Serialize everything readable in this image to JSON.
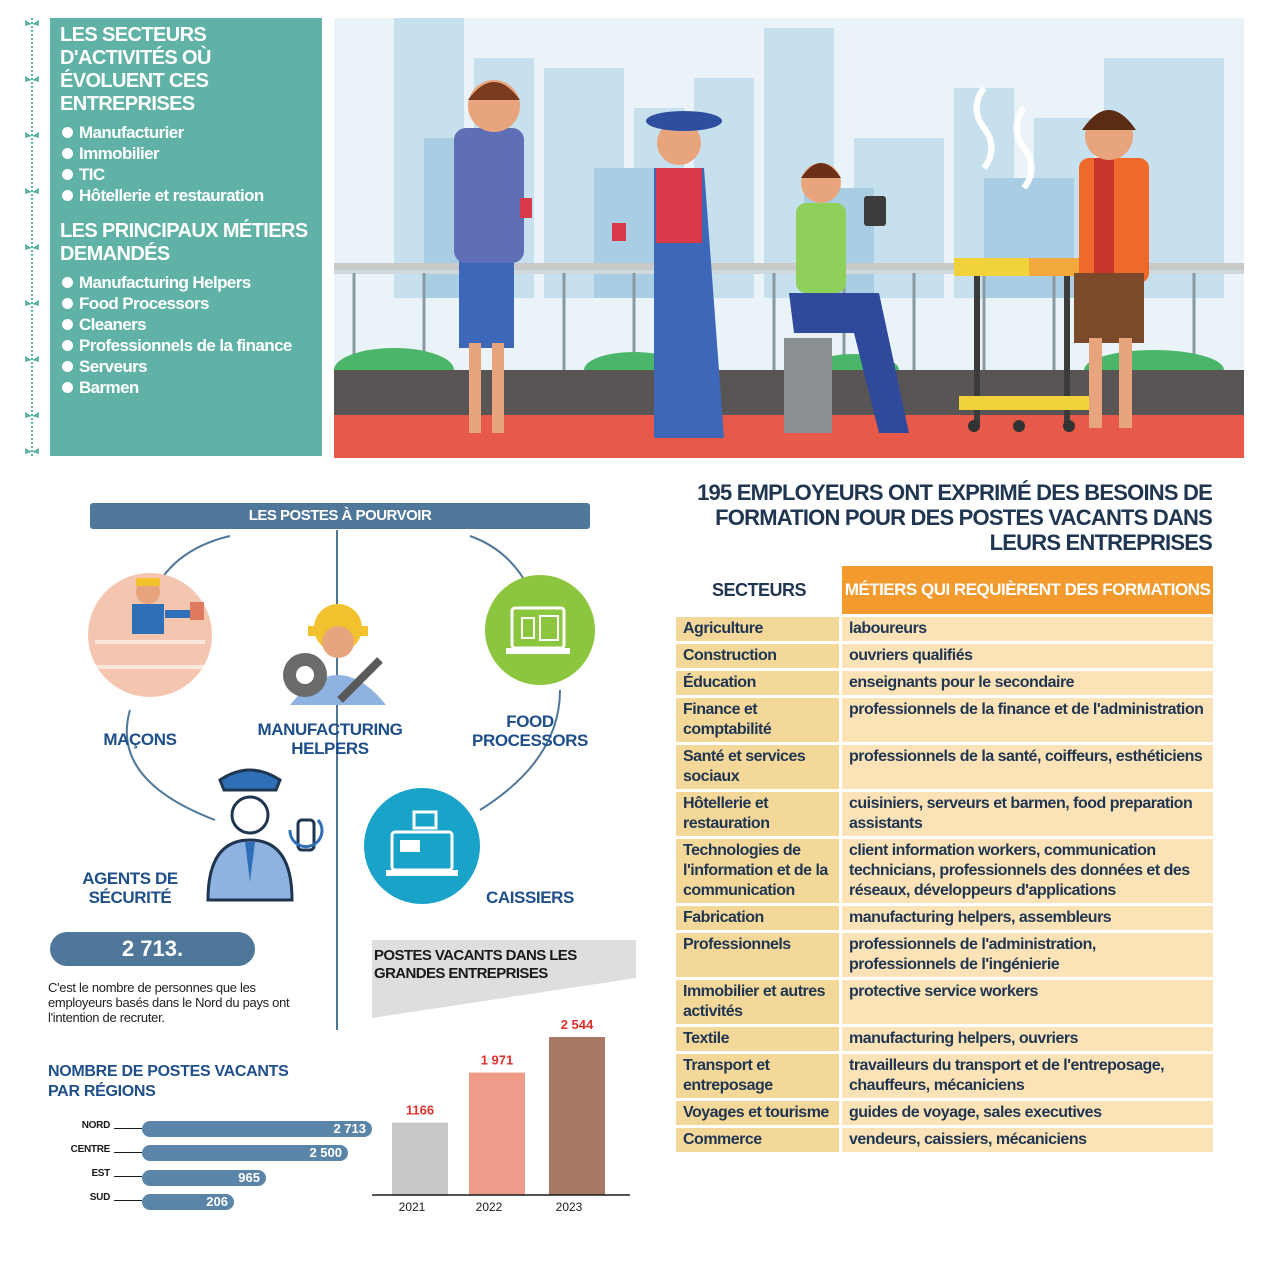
{
  "sectors_panel": {
    "title": "LES SECTEURS D'ACTIVITÉS OÙ ÉVOLUENT CES ENTREPRISES",
    "items": [
      "Manufacturier",
      "Immobilier",
      "TIC",
      "Hôtellerie et restauration"
    ]
  },
  "metiers_panel": {
    "title": "LES PRINCIPAUX MÉTIERS DEMANDÉS",
    "items": [
      "Manufacturing Helpers",
      "Food Processors",
      "Cleaners",
      "Professionnels de la finance",
      "Serveurs",
      "Barmen"
    ]
  },
  "postes": {
    "banner": "LES POSTES À POURVOIR",
    "jobs": {
      "macons": "MAÇONS",
      "manufacturing": "MANUFACTURING HELPERS",
      "food": "FOOD PROCESSORS",
      "agents": "AGENTS DE SÉCURITÉ",
      "caissiers": "CAISSIERS"
    }
  },
  "recruit": {
    "count": "2 713.",
    "text": "C'est le nombre de personnes que les employeurs basés dans le Nord du pays ont l'intention de recruter."
  },
  "regions": {
    "title": "NOMBRE DE POSTES VACANTS PAR RÉGIONS",
    "items": [
      {
        "label": "NORD",
        "value": 2713,
        "display": "2 713"
      },
      {
        "label": "CENTRE",
        "value": 2500,
        "display": "2 500"
      },
      {
        "label": "EST",
        "value": 965,
        "display": "965"
      },
      {
        "label": "SUD",
        "value": 206,
        "display": "206"
      }
    ]
  },
  "chart_data": {
    "type": "bar",
    "title": "POSTES VACANTS DANS LES GRANDES ENTREPRISES",
    "categories": [
      "2021",
      "2022",
      "2023"
    ],
    "values": [
      1166,
      1971,
      2544
    ],
    "labels": [
      "1166",
      "1 971",
      "2 544"
    ],
    "colors": [
      "#c8c8c8",
      "#ee9b8a",
      "#a77a66"
    ],
    "ylim": [
      0,
      2544
    ]
  },
  "training": {
    "title": "195 EMPLOYEURS ONT EXPRIMÉ DES BESOINS DE FORMATION POUR DES POSTES VACANTS DANS LEURS ENTREPRISES",
    "col_secteurs": "SECTEURS",
    "col_metiers": "MÉTIERS QUI REQUIÈRENT DES FORMATIONS",
    "rows": [
      {
        "secteur": "Agriculture",
        "metiers": "laboureurs"
      },
      {
        "secteur": "Construction",
        "metiers": "ouvriers qualifiés"
      },
      {
        "secteur": "Éducation",
        "metiers": "enseignants pour le secondaire"
      },
      {
        "secteur": "Finance et comptabilité",
        "metiers": "professionnels de la finance et de l'administration"
      },
      {
        "secteur": "Santé et services sociaux",
        "metiers": "professionnels de la santé, coiffeurs, esthéticiens"
      },
      {
        "secteur": "Hôtellerie et restauration",
        "metiers": "cuisiniers, serveurs et barmen, food preparation assistants"
      },
      {
        "secteur": "Technologies de l'information et de la communication",
        "metiers": "client information workers, communication technicians, professionnels des données et des réseaux, développeurs d'applications"
      },
      {
        "secteur": "Fabrication",
        "metiers": "manufacturing helpers, assembleurs"
      },
      {
        "secteur": "Professionnels",
        "metiers": "professionnels de l'administration, professionnels de l'ingénierie"
      },
      {
        "secteur": "Immobilier et autres activités",
        "metiers": "protective service workers"
      },
      {
        "secteur": "Textile",
        "metiers": "manufacturing helpers, ouvriers"
      },
      {
        "secteur": "Transport et entreposage",
        "metiers": "travailleurs du transport et de l'entreposage, chauffeurs, mécaniciens"
      },
      {
        "secteur": "Voyages et tourisme",
        "metiers": "guides de voyage, sales executives"
      },
      {
        "secteur": "Commerce",
        "metiers": "vendeurs, caissiers, mécaniciens"
      }
    ]
  }
}
